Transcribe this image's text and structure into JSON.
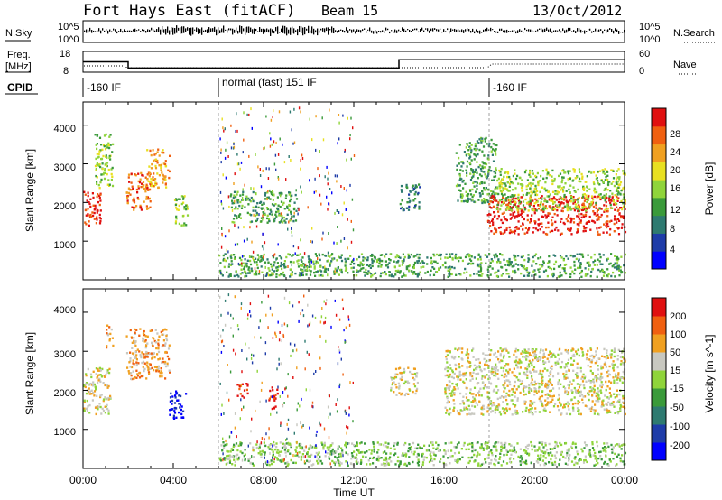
{
  "header": {
    "title": "Fort Hays East (fitACF)",
    "beam": "Beam 15",
    "date": "13/Oct/2012"
  },
  "sky_panel": {
    "left_label": "N.Sky",
    "right_label": "N.Search",
    "left_ticks": [
      "10^5",
      "10^0"
    ],
    "right_ticks": [
      "10^5",
      "10^0"
    ]
  },
  "freq_panel": {
    "left_label_line1": "Freq.",
    "left_label_line2": "[MHz]",
    "right_label": "Nave",
    "left_ticks": [
      "18",
      "8"
    ],
    "right_ticks": [
      "60",
      "0"
    ],
    "freq_segments": [
      {
        "start_hour": 0,
        "end_hour": 2,
        "value_mhz": 13
      },
      {
        "start_hour": 2,
        "end_hour": 14,
        "value_mhz": 10
      },
      {
        "start_hour": 14,
        "end_hour": 24,
        "value_mhz": 14
      }
    ]
  },
  "cpid": {
    "label": "CPID",
    "segments": [
      {
        "start_hour": 0,
        "label": "-160 IF"
      },
      {
        "start_hour": 6,
        "label": "normal (fast) 151 IF"
      },
      {
        "start_hour": 18,
        "label": "-160 IF"
      }
    ]
  },
  "chart_data": [
    {
      "type": "heatmap",
      "title": "",
      "xlabel": "",
      "ylabel": "Slant Range [km]",
      "x_ticks": [
        "00:00",
        "04:00",
        "08:00",
        "12:00",
        "16:00",
        "20:00",
        "00:00"
      ],
      "y_ticks": [
        "1000",
        "2000",
        "3000",
        "4000"
      ],
      "xlim_hours": [
        0,
        24
      ],
      "ylim_km": [
        0,
        4600
      ],
      "colorbar": {
        "label": "Power [dB]",
        "ticks": [
          "28",
          "24",
          "20",
          "16",
          "12",
          "8",
          "4"
        ],
        "colors": [
          "#0000ff",
          "#1e3ca8",
          "#2e7a70",
          "#3a9a3a",
          "#8fd43a",
          "#e8e020",
          "#f0a020",
          "#f06010",
          "#e01010"
        ]
      },
      "patches": [
        {
          "hours": [
            0.0,
            0.8
          ],
          "range_km": [
            1400,
            2300
          ],
          "level": 8
        },
        {
          "hours": [
            0.5,
            1.3
          ],
          "range_km": [
            2400,
            3800
          ],
          "level": 4
        },
        {
          "hours": [
            1.9,
            3.0
          ],
          "range_km": [
            1800,
            2800
          ],
          "level": 7
        },
        {
          "hours": [
            2.8,
            3.8
          ],
          "range_km": [
            2400,
            3400
          ],
          "level": 6
        },
        {
          "hours": [
            4.0,
            4.6
          ],
          "range_km": [
            1400,
            2200
          ],
          "level": 4
        },
        {
          "hours": [
            6.5,
            9.5
          ],
          "range_km": [
            1500,
            2300
          ],
          "level": 3
        },
        {
          "hours": [
            14.0,
            14.9
          ],
          "range_km": [
            1800,
            2500
          ],
          "level": 2
        },
        {
          "hours": [
            16.5,
            18.3
          ],
          "range_km": [
            2000,
            3700
          ],
          "level": 3
        },
        {
          "hours": [
            17.9,
            24.0
          ],
          "range_km": [
            1200,
            2200
          ],
          "level": 8
        },
        {
          "hours": [
            18.3,
            24.0
          ],
          "range_km": [
            1800,
            2900
          ],
          "level": 4
        },
        {
          "hours": [
            6.0,
            24.0
          ],
          "range_km": [
            100,
            700
          ],
          "level": 3
        }
      ]
    },
    {
      "type": "heatmap",
      "title": "",
      "xlabel": "Time UT",
      "ylabel": "Slant Range [km]",
      "x_ticks": [
        "00:00",
        "04:00",
        "08:00",
        "12:00",
        "16:00",
        "20:00",
        "00:00"
      ],
      "y_ticks": [
        "1000",
        "2000",
        "3000",
        "4000"
      ],
      "xlim_hours": [
        0,
        24
      ],
      "ylim_km": [
        0,
        4600
      ],
      "colorbar": {
        "label": "Velocity [m s^-1]",
        "ticks": [
          "200",
          "100",
          "50",
          "15",
          "-15",
          "-50",
          "-100",
          "-200"
        ],
        "colors": [
          "#0000ff",
          "#1e3ca8",
          "#2e7a70",
          "#3a9a3a",
          "#8fd43a",
          "#c8c8c0",
          "#f0a020",
          "#f06010",
          "#e01010"
        ]
      },
      "patches": [
        {
          "hours": [
            0.0,
            1.2
          ],
          "range_km": [
            1400,
            2600
          ],
          "level": 5
        },
        {
          "hours": [
            1.0,
            1.3
          ],
          "range_km": [
            3100,
            3700
          ],
          "level": 6
        },
        {
          "hours": [
            1.9,
            3.8
          ],
          "range_km": [
            2300,
            3600
          ],
          "level": 6
        },
        {
          "hours": [
            3.8,
            4.6
          ],
          "range_km": [
            1300,
            2000
          ],
          "level": 0
        },
        {
          "hours": [
            6.8,
            7.3
          ],
          "range_km": [
            1800,
            2200
          ],
          "level": 8
        },
        {
          "hours": [
            8.2,
            8.6
          ],
          "range_km": [
            1500,
            2100
          ],
          "level": 8
        },
        {
          "hours": [
            13.6,
            14.8
          ],
          "range_km": [
            1900,
            2600
          ],
          "level": 5
        },
        {
          "hours": [
            16.0,
            24.0
          ],
          "range_km": [
            1400,
            3100
          ],
          "level": 5
        },
        {
          "hours": [
            6.0,
            24.0
          ],
          "range_km": [
            100,
            700
          ],
          "level": 4
        }
      ]
    }
  ]
}
